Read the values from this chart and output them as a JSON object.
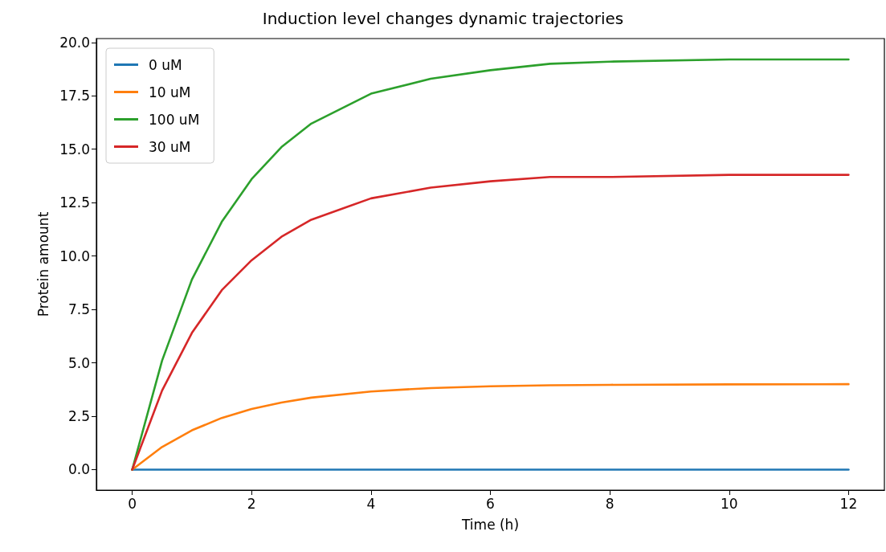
{
  "chart_data": {
    "type": "line",
    "title": "Induction level changes dynamic trajectories",
    "xlabel": "Time (h)",
    "ylabel": "Protein amount",
    "x": [
      0,
      0.5,
      1,
      1.5,
      2,
      2.5,
      3,
      4,
      5,
      6,
      7,
      8,
      10,
      12
    ],
    "series": [
      {
        "name": "0 uM",
        "color": "#1f77b4",
        "values": [
          0,
          0,
          0,
          0,
          0,
          0,
          0,
          0,
          0,
          0,
          0,
          0,
          0,
          0
        ]
      },
      {
        "name": "10 uM",
        "color": "#ff7f0e",
        "values": [
          0,
          1.06,
          1.84,
          2.42,
          2.84,
          3.14,
          3.37,
          3.66,
          3.82,
          3.9,
          3.95,
          3.97,
          3.99,
          4.0
        ]
      },
      {
        "name": "100 uM",
        "color": "#2ca02c",
        "values": [
          0,
          5.1,
          8.9,
          11.6,
          13.6,
          15.1,
          16.2,
          17.6,
          18.3,
          18.7,
          19.0,
          19.1,
          19.2,
          19.2
        ]
      },
      {
        "name": "30 uM",
        "color": "#d62728",
        "values": [
          0,
          3.7,
          6.4,
          8.4,
          9.8,
          10.9,
          11.7,
          12.7,
          13.2,
          13.5,
          13.7,
          13.7,
          13.8,
          13.8
        ]
      }
    ],
    "xlim": [
      -0.6,
      12.6
    ],
    "ylim": [
      -0.96,
      20.18
    ],
    "xticks": [
      0,
      2,
      4,
      6,
      8,
      10,
      12
    ],
    "yticks": [
      {
        "value": 0,
        "label": "0.0"
      },
      {
        "value": 2.5,
        "label": "2.5"
      },
      {
        "value": 5,
        "label": "5.0"
      },
      {
        "value": 7.5,
        "label": "7.5"
      },
      {
        "value": 10,
        "label": "10.0"
      },
      {
        "value": 12.5,
        "label": "12.5"
      },
      {
        "value": 15,
        "label": "15.0"
      },
      {
        "value": 17.5,
        "label": "17.5"
      },
      {
        "value": 20,
        "label": "20.0"
      }
    ],
    "grid": false,
    "legend": "top left",
    "line_style": "solid"
  }
}
